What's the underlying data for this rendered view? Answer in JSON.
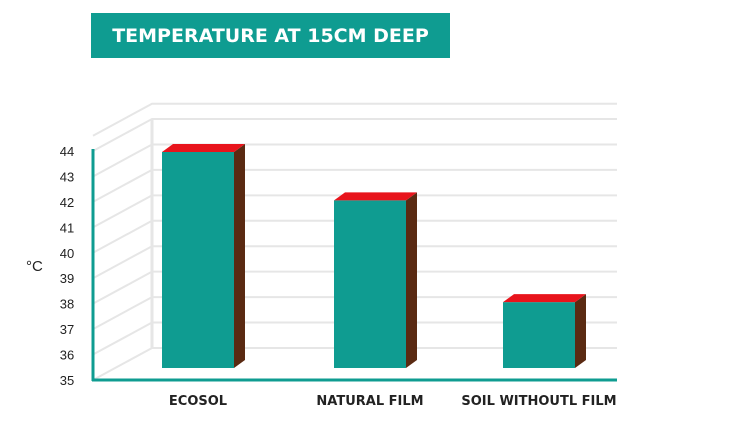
{
  "chart_data": {
    "type": "bar",
    "title": "TEMPERATURE AT 15CM DEEP",
    "ylabel": "°C",
    "xlabel": "",
    "categories": [
      "ECOSOL",
      "NATURAL FILM",
      "SOIL WITHOUTL FILM"
    ],
    "values": [
      44.0,
      42.1,
      38.1
    ],
    "ylim": [
      35,
      44
    ],
    "yticks": [
      "35",
      "36",
      "37",
      "38",
      "39",
      "40",
      "41",
      "42",
      "43",
      "44"
    ],
    "grid": true,
    "legend": "none",
    "colors": {
      "bar_front": "#0f9c91",
      "bar_top": "#e8141c",
      "bar_side": "#5a2a12",
      "axis": "#0f9c91",
      "grid": "#e6e6e6"
    }
  }
}
